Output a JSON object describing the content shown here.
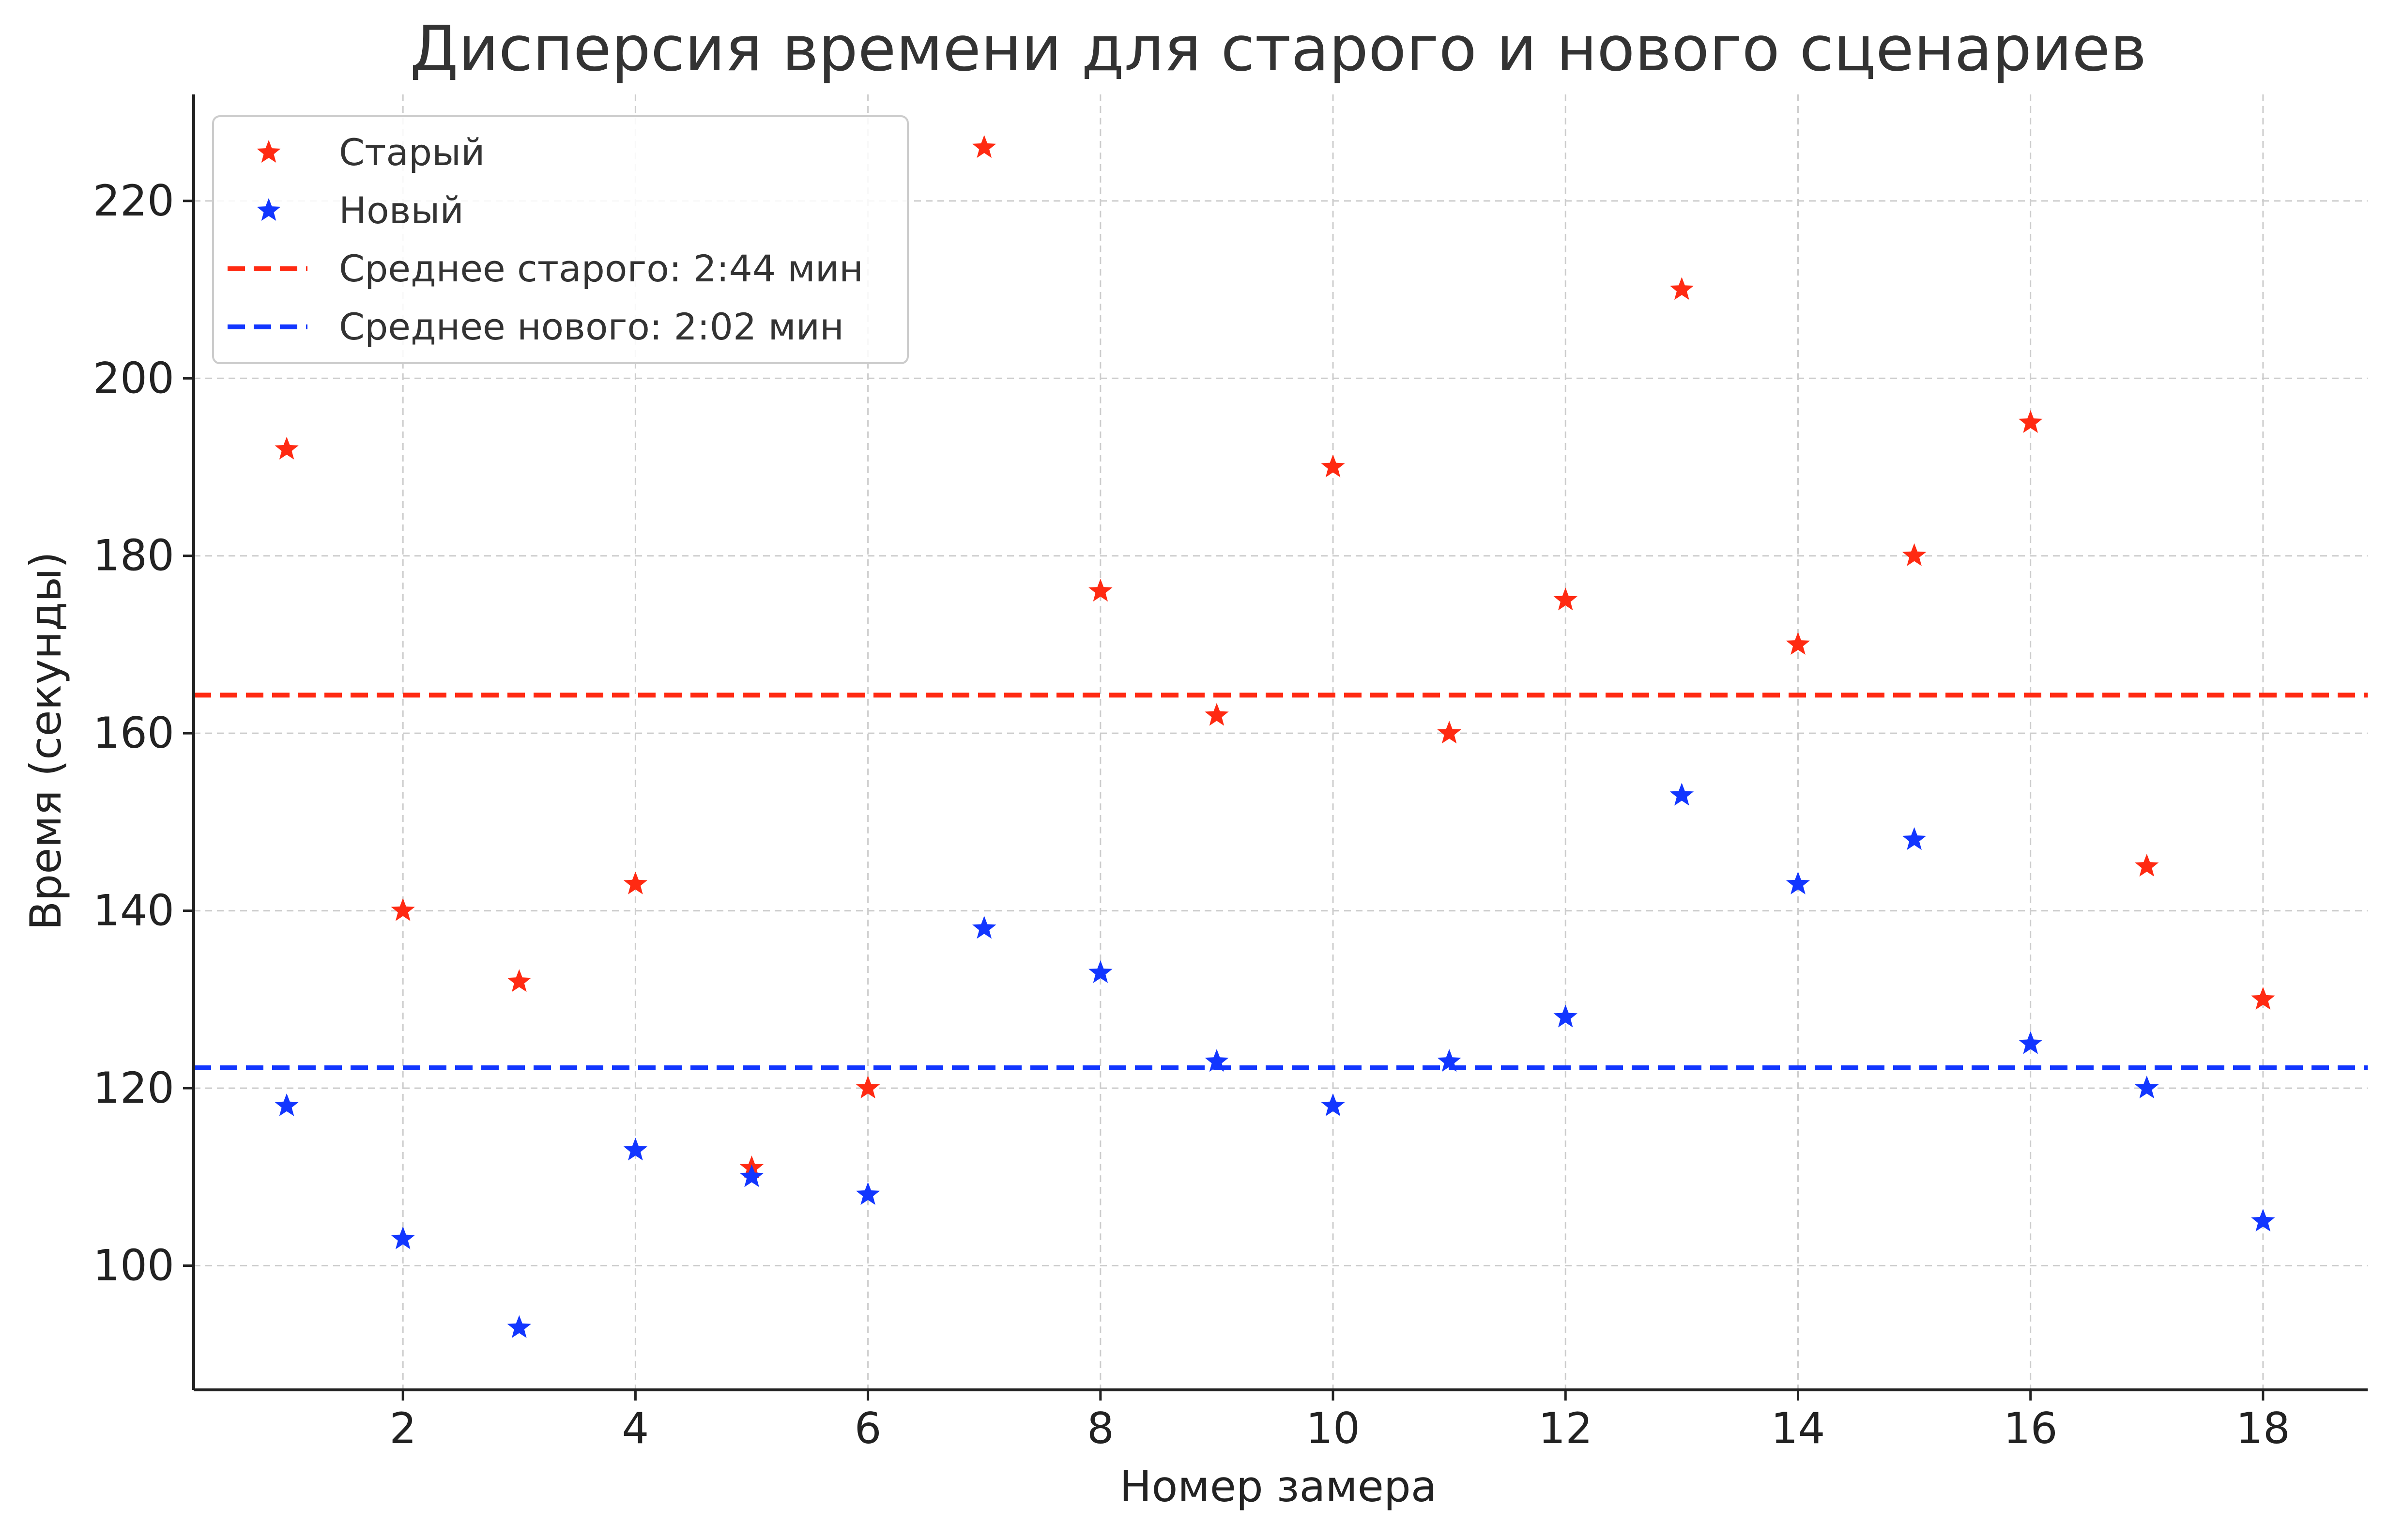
{
  "chart_data": {
    "type": "scatter",
    "title": "Дисперсия времени для старого и нового сценариев",
    "xlabel": "Номер замера",
    "ylabel": "Время (секунды)",
    "xlim": [
      0.2,
      18.9
    ],
    "ylim": [
      86,
      232
    ],
    "x_ticks": [
      2,
      4,
      6,
      8,
      10,
      12,
      14,
      16,
      18
    ],
    "y_ticks": [
      100,
      120,
      140,
      160,
      180,
      200,
      220
    ],
    "grid": true,
    "legend_position": "top-left",
    "x": [
      1,
      2,
      3,
      4,
      5,
      6,
      7,
      8,
      9,
      10,
      11,
      12,
      13,
      14,
      15,
      16,
      17,
      18
    ],
    "series": [
      {
        "name": "Старый",
        "color": "#ff2a12",
        "marker": "star",
        "values": [
          192,
          140,
          132,
          143,
          111,
          120,
          226,
          176,
          162,
          190,
          160,
          175,
          210,
          170,
          180,
          195,
          145,
          130
        ]
      },
      {
        "name": "Новый",
        "color": "#1236ff",
        "marker": "star",
        "values": [
          118,
          103,
          93,
          113,
          110,
          108,
          138,
          133,
          123,
          118,
          123,
          128,
          153,
          143,
          148,
          125,
          120,
          105
        ]
      }
    ],
    "reference_lines": [
      {
        "name": "Среднее старого: 2:44 мин",
        "value": 164.3,
        "color": "#ff2a12",
        "style": "dashed"
      },
      {
        "name": "Среднее нового: 2:02 мин",
        "value": 122.3,
        "color": "#1236ff",
        "style": "dashed"
      }
    ]
  }
}
